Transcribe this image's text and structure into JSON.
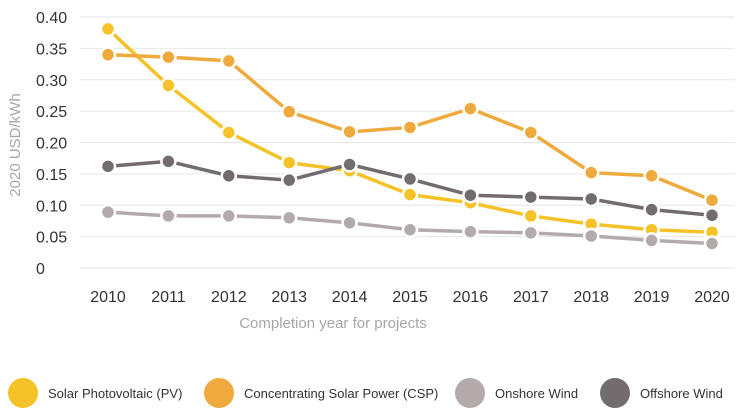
{
  "chart_data": {
    "type": "line",
    "xlabel": "Completion year for projects",
    "ylabel": "2020 USD/kWh",
    "ylim": [
      0,
      0.4
    ],
    "yticks": [
      "0",
      "0.05",
      "0.10",
      "0.15",
      "0.20",
      "0.25",
      "0.30",
      "0.35",
      "0.40"
    ],
    "ytick_values": [
      0,
      0.05,
      0.1,
      0.15,
      0.2,
      0.25,
      0.3,
      0.35,
      0.4
    ],
    "x": [
      "2010",
      "2011",
      "2012",
      "2013",
      "2014",
      "2015",
      "2016",
      "2017",
      "2018",
      "2019",
      "2020"
    ],
    "grid": "horizontal",
    "legend_position": "bottom",
    "series": [
      {
        "name": "Solar Photovoltaic (PV)",
        "color": "#f5c228",
        "values": [
          0.381,
          0.291,
          0.216,
          0.168,
          0.155,
          0.117,
          0.104,
          0.083,
          0.07,
          0.061,
          0.057
        ]
      },
      {
        "name": "Concentrating Solar Power (CSP)",
        "color": "#eeaa3c",
        "values": [
          0.34,
          0.336,
          0.33,
          0.249,
          0.217,
          0.224,
          0.254,
          0.216,
          0.152,
          0.147,
          0.108
        ]
      },
      {
        "name": "Onshore Wind",
        "color": "#b3aaab",
        "values": [
          0.089,
          0.083,
          0.083,
          0.08,
          0.072,
          0.061,
          0.058,
          0.056,
          0.051,
          0.044,
          0.039
        ]
      },
      {
        "name": "Offshore Wind",
        "color": "#736c6e",
        "values": [
          0.162,
          0.17,
          0.147,
          0.14,
          0.165,
          0.142,
          0.116,
          0.113,
          0.11,
          0.093,
          0.084
        ]
      }
    ]
  }
}
